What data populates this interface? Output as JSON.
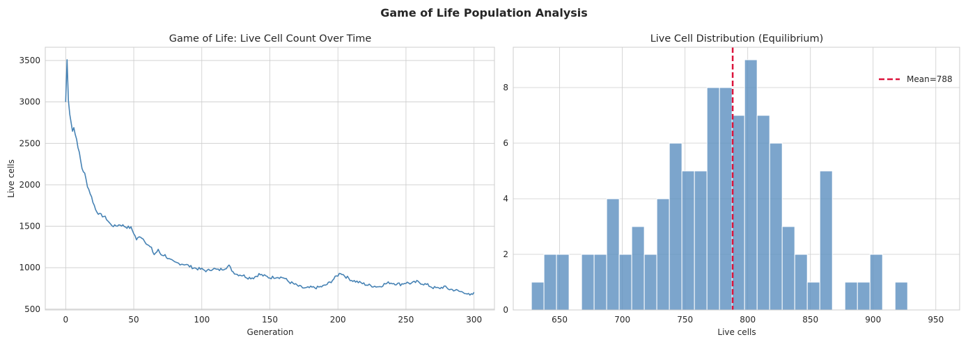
{
  "figure": {
    "suptitle": "Game of Life Population Analysis"
  },
  "chart_data": [
    {
      "type": "line",
      "title": "Game of Life: Live Cell Count Over Time",
      "xlabel": "Generation",
      "ylabel": "Live cells",
      "xlim": [
        -15,
        315
      ],
      "ylim": [
        490,
        3660
      ],
      "xticks": [
        0,
        50,
        100,
        150,
        200,
        250,
        300
      ],
      "yticks": [
        500,
        1000,
        1500,
        2000,
        2500,
        3000,
        3500
      ],
      "grid": true,
      "color": "#4682b4",
      "series": [
        {
          "name": "Live cells",
          "anchors": [
            [
              0,
              3000
            ],
            [
              1,
              3510
            ],
            [
              2,
              3020
            ],
            [
              3,
              2850
            ],
            [
              4,
              2750
            ],
            [
              5,
              2660
            ],
            [
              6,
              2700
            ],
            [
              7,
              2610
            ],
            [
              8,
              2550
            ],
            [
              10,
              2380
            ],
            [
              12,
              2200
            ],
            [
              14,
              2130
            ],
            [
              16,
              1990
            ],
            [
              18,
              1900
            ],
            [
              20,
              1800
            ],
            [
              22,
              1700
            ],
            [
              25,
              1640
            ],
            [
              28,
              1620
            ],
            [
              30,
              1590
            ],
            [
              33,
              1520
            ],
            [
              36,
              1500
            ],
            [
              40,
              1520
            ],
            [
              45,
              1490
            ],
            [
              48,
              1480
            ],
            [
              50,
              1420
            ],
            [
              52,
              1340
            ],
            [
              55,
              1380
            ],
            [
              58,
              1330
            ],
            [
              60,
              1280
            ],
            [
              63,
              1230
            ],
            [
              65,
              1160
            ],
            [
              68,
              1210
            ],
            [
              70,
              1160
            ],
            [
              73,
              1150
            ],
            [
              76,
              1100
            ],
            [
              80,
              1060
            ],
            [
              84,
              1050
            ],
            [
              88,
              1040
            ],
            [
              92,
              1010
            ],
            [
              96,
              990
            ],
            [
              100,
              980
            ],
            [
              104,
              960
            ],
            [
              108,
              990
            ],
            [
              112,
              970
            ],
            [
              116,
              990
            ],
            [
              120,
              1020
            ],
            [
              123,
              950
            ],
            [
              126,
              920
            ],
            [
              130,
              910
            ],
            [
              134,
              880
            ],
            [
              138,
              880
            ],
            [
              142,
              920
            ],
            [
              146,
              900
            ],
            [
              150,
              880
            ],
            [
              155,
              890
            ],
            [
              160,
              880
            ],
            [
              164,
              830
            ],
            [
              168,
              800
            ],
            [
              172,
              770
            ],
            [
              176,
              750
            ],
            [
              180,
              760
            ],
            [
              185,
              760
            ],
            [
              190,
              780
            ],
            [
              194,
              820
            ],
            [
              198,
              880
            ],
            [
              202,
              940
            ],
            [
              206,
              890
            ],
            [
              210,
              850
            ],
            [
              214,
              830
            ],
            [
              218,
              810
            ],
            [
              222,
              790
            ],
            [
              226,
              780
            ],
            [
              230,
              770
            ],
            [
              234,
              800
            ],
            [
              238,
              820
            ],
            [
              242,
              810
            ],
            [
              246,
              800
            ],
            [
              250,
              820
            ],
            [
              254,
              810
            ],
            [
              258,
              830
            ],
            [
              262,
              810
            ],
            [
              266,
              790
            ],
            [
              270,
              760
            ],
            [
              274,
              750
            ],
            [
              278,
              770
            ],
            [
              282,
              740
            ],
            [
              286,
              730
            ],
            [
              290,
              710
            ],
            [
              294,
              700
            ],
            [
              297,
              660
            ],
            [
              300,
              690
            ]
          ],
          "noise_amplitude": 18
        }
      ]
    },
    {
      "type": "bar",
      "title": "Live Cell Distribution (Equilibrium)",
      "xlabel": "Live cells",
      "ylabel": "",
      "xlim": [
        613,
        969
      ],
      "ylim": [
        0,
        9.45
      ],
      "xticks": [
        650,
        700,
        750,
        800,
        850,
        900,
        950
      ],
      "yticks": [
        0,
        2,
        4,
        6,
        8
      ],
      "grid": true,
      "color": "#5b8fbf",
      "bin_edges": [
        627.5,
        637.5,
        647.5,
        657.5,
        667.5,
        677.5,
        687.5,
        697.5,
        707.5,
        717.5,
        727.5,
        737.5,
        747.5,
        757.5,
        767.5,
        777.5,
        787.5,
        797.5,
        807.5,
        817.5,
        827.5,
        837.5,
        847.5,
        857.5,
        867.5,
        877.5,
        887.5,
        897.5,
        907.5,
        917.5,
        927.5,
        937.5,
        947.5,
        957.5
      ],
      "values": [
        1,
        2,
        2,
        0,
        2,
        2,
        4,
        2,
        3,
        2,
        4,
        6,
        5,
        5,
        8,
        8,
        7,
        9,
        7,
        6,
        3,
        2,
        1,
        5,
        0,
        1,
        1,
        2,
        0,
        1,
        0,
        0,
        0
      ],
      "values_note": "counts per bin",
      "mean_line": {
        "value": 788,
        "label": "Mean=788",
        "color": "#dc143c"
      },
      "legend_position": "upper right"
    }
  ]
}
